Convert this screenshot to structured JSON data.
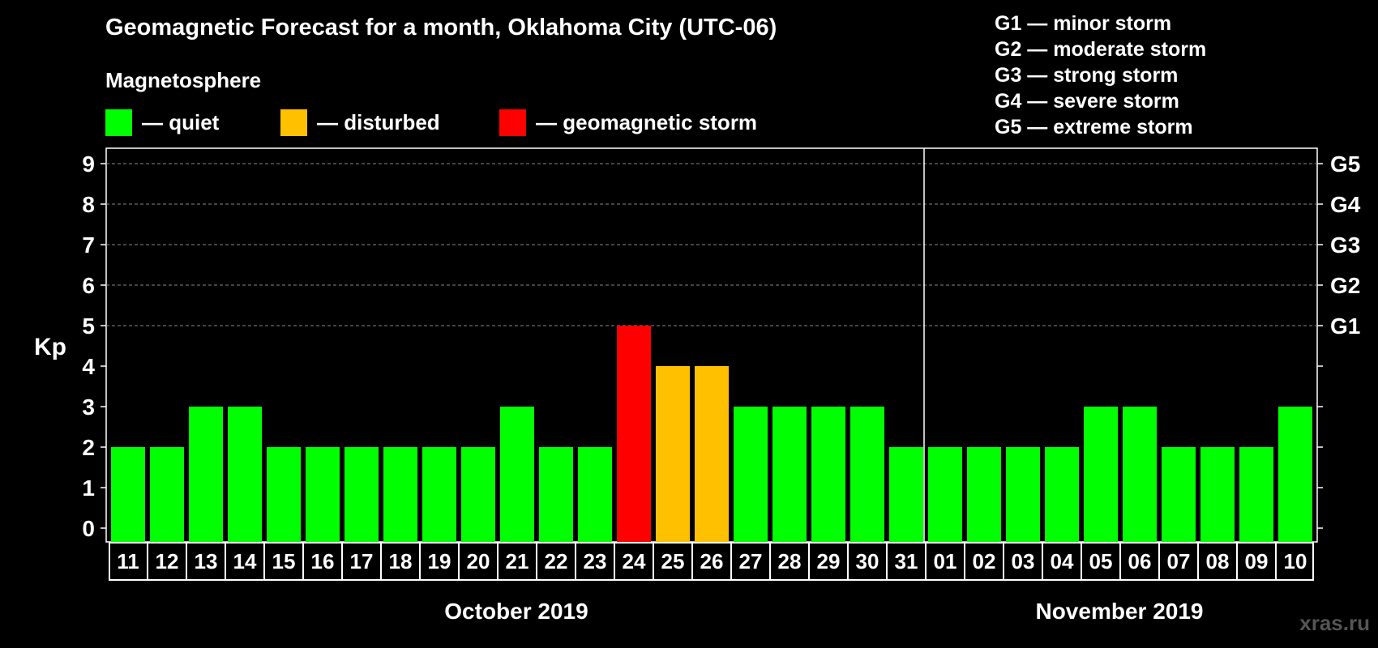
{
  "chart_data": {
    "type": "bar",
    "title": "Geomagnetic Forecast for a month, Oklahoma City (UTC-06)",
    "ylabel": "Kp",
    "ylim": [
      0,
      9
    ],
    "yticks": [
      "0",
      "1",
      "2",
      "3",
      "4",
      "5",
      "6",
      "7",
      "8",
      "9"
    ],
    "right_axis_labels": [
      {
        "kp": 5,
        "label": "G1"
      },
      {
        "kp": 6,
        "label": "G2"
      },
      {
        "kp": 7,
        "label": "G3"
      },
      {
        "kp": 8,
        "label": "G4"
      },
      {
        "kp": 9,
        "label": "G5"
      }
    ],
    "categories": [
      "11",
      "12",
      "13",
      "14",
      "15",
      "16",
      "17",
      "18",
      "19",
      "20",
      "21",
      "22",
      "23",
      "24",
      "25",
      "26",
      "27",
      "28",
      "29",
      "30",
      "31",
      "01",
      "02",
      "03",
      "04",
      "05",
      "06",
      "07",
      "08",
      "09",
      "10"
    ],
    "values": [
      2,
      2,
      3,
      3,
      2,
      2,
      2,
      2,
      2,
      2,
      3,
      2,
      2,
      5,
      4,
      4,
      3,
      3,
      3,
      3,
      2,
      2,
      2,
      2,
      2,
      3,
      3,
      2,
      2,
      2,
      3
    ],
    "status": [
      "quiet",
      "quiet",
      "quiet",
      "quiet",
      "quiet",
      "quiet",
      "quiet",
      "quiet",
      "quiet",
      "quiet",
      "quiet",
      "quiet",
      "quiet",
      "storm",
      "disturbed",
      "disturbed",
      "quiet",
      "quiet",
      "quiet",
      "quiet",
      "quiet",
      "quiet",
      "quiet",
      "quiet",
      "quiet",
      "quiet",
      "quiet",
      "quiet",
      "quiet",
      "quiet",
      "quiet"
    ],
    "months": [
      {
        "label": "October 2019",
        "start": 0,
        "end": 20
      },
      {
        "label": "November 2019",
        "start": 21,
        "end": 30
      }
    ],
    "grid": true
  },
  "legend": {
    "heading": "Magnetosphere",
    "items": [
      {
        "label": "— quiet",
        "color": "#00ff00"
      },
      {
        "label": "— disturbed",
        "color": "#ffc000"
      },
      {
        "label": "— geomagnetic storm",
        "color": "#ff0000"
      }
    ]
  },
  "storm_levels": [
    "G1 — minor storm",
    "G2 — moderate storm",
    "G3 — strong storm",
    "G4 — severe storm",
    "G5 — extreme storm"
  ],
  "colors": {
    "quiet": "#00ff00",
    "disturbed": "#ffc000",
    "storm": "#ff0000",
    "background": "#000000"
  },
  "watermark": "xras.ru"
}
